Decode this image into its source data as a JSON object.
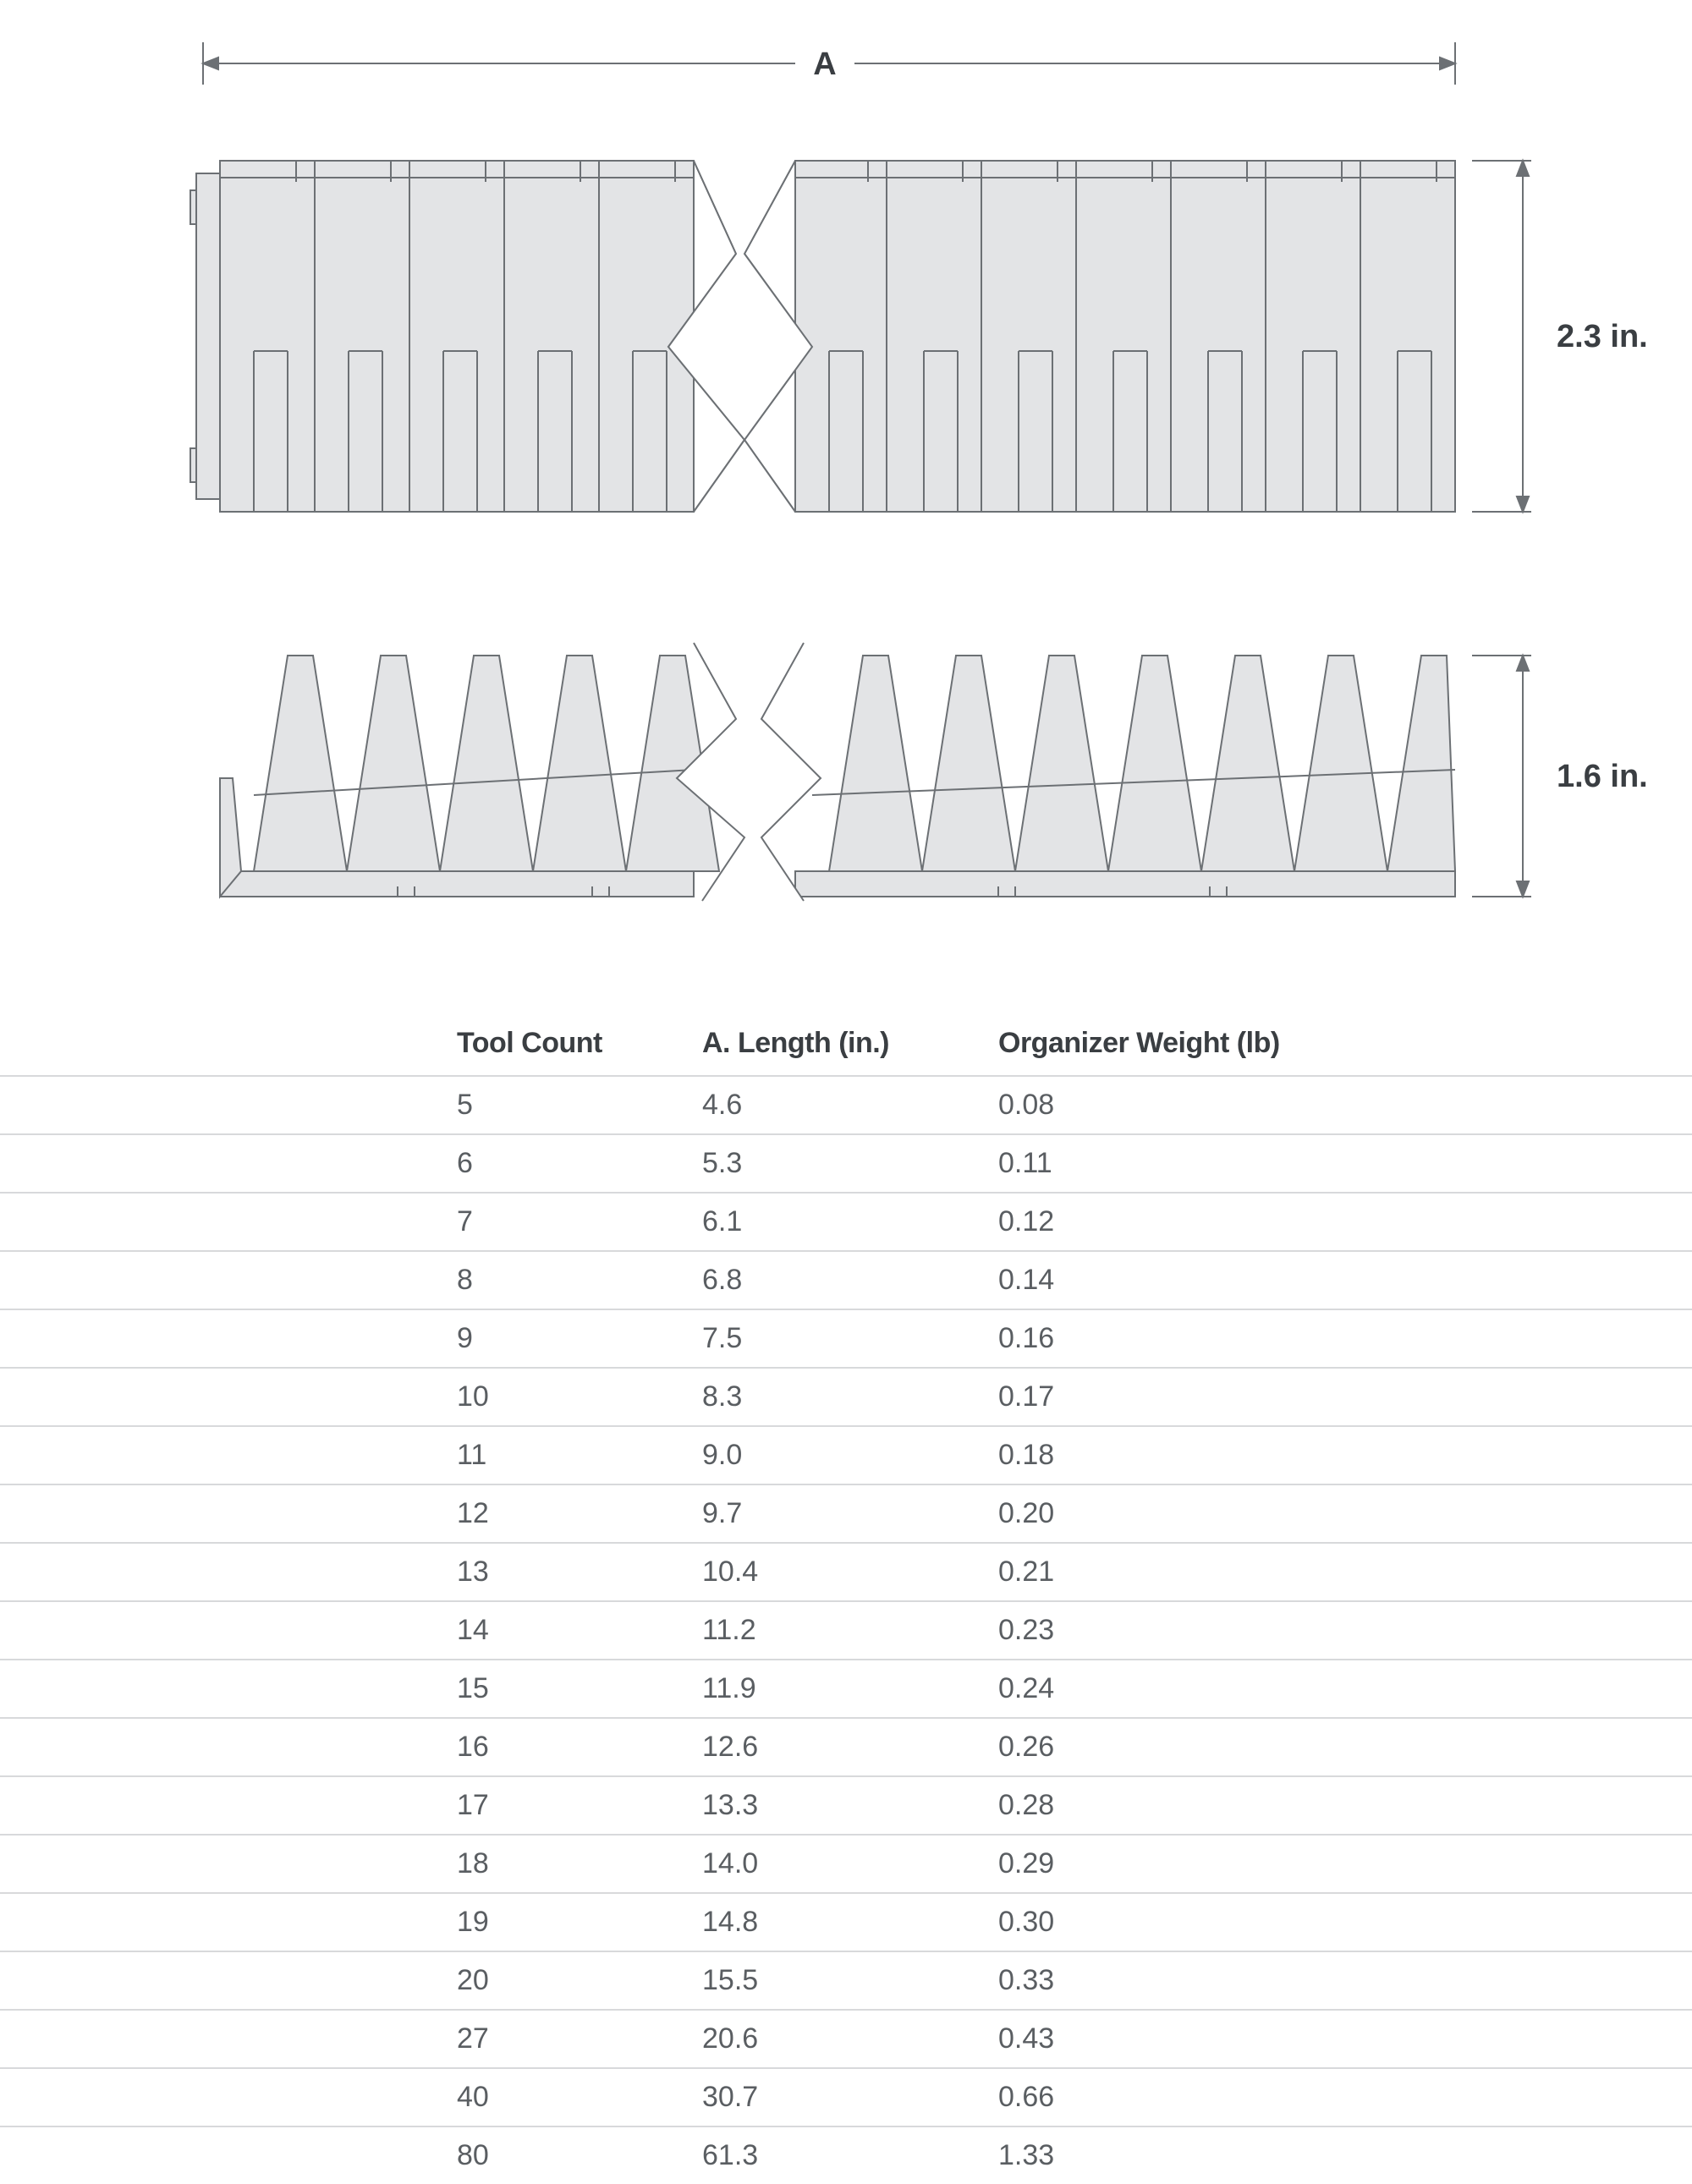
{
  "diagram": {
    "dim_label_A": "A",
    "height_label_main": "2.3 in.",
    "height_label_profile": "1.6 in.",
    "stroke_color": "#6c7074",
    "fill_color": "#e3e4e6",
    "bg_color": "#ffffff",
    "label_color": "#3a3e42",
    "label_fontsize": 38,
    "stroke_width": 2
  },
  "table": {
    "columns": [
      "Tool Count",
      "A. Length (in.)",
      "Organizer Weight (lb)"
    ],
    "rows": [
      [
        "5",
        "4.6",
        "0.08"
      ],
      [
        "6",
        "5.3",
        "0.11"
      ],
      [
        "7",
        "6.1",
        "0.12"
      ],
      [
        "8",
        "6.8",
        "0.14"
      ],
      [
        "9",
        "7.5",
        "0.16"
      ],
      [
        "10",
        "8.3",
        "0.17"
      ],
      [
        "11",
        "9.0",
        "0.18"
      ],
      [
        "12",
        "9.7",
        "0.20"
      ],
      [
        "13",
        "10.4",
        "0.21"
      ],
      [
        "14",
        "11.2",
        "0.23"
      ],
      [
        "15",
        "11.9",
        "0.24"
      ],
      [
        "16",
        "12.6",
        "0.26"
      ],
      [
        "17",
        "13.3",
        "0.28"
      ],
      [
        "18",
        "14.0",
        "0.29"
      ],
      [
        "19",
        "14.8",
        "0.30"
      ],
      [
        "20",
        "15.5",
        "0.33"
      ],
      [
        "27",
        "20.6",
        "0.43"
      ],
      [
        "40",
        "30.7",
        "0.66"
      ],
      [
        "80",
        "61.3",
        "1.33"
      ]
    ],
    "header_color": "#3a3e42",
    "cell_color": "#5a5e62",
    "border_color": "#d8d9db",
    "font_size": 34
  }
}
